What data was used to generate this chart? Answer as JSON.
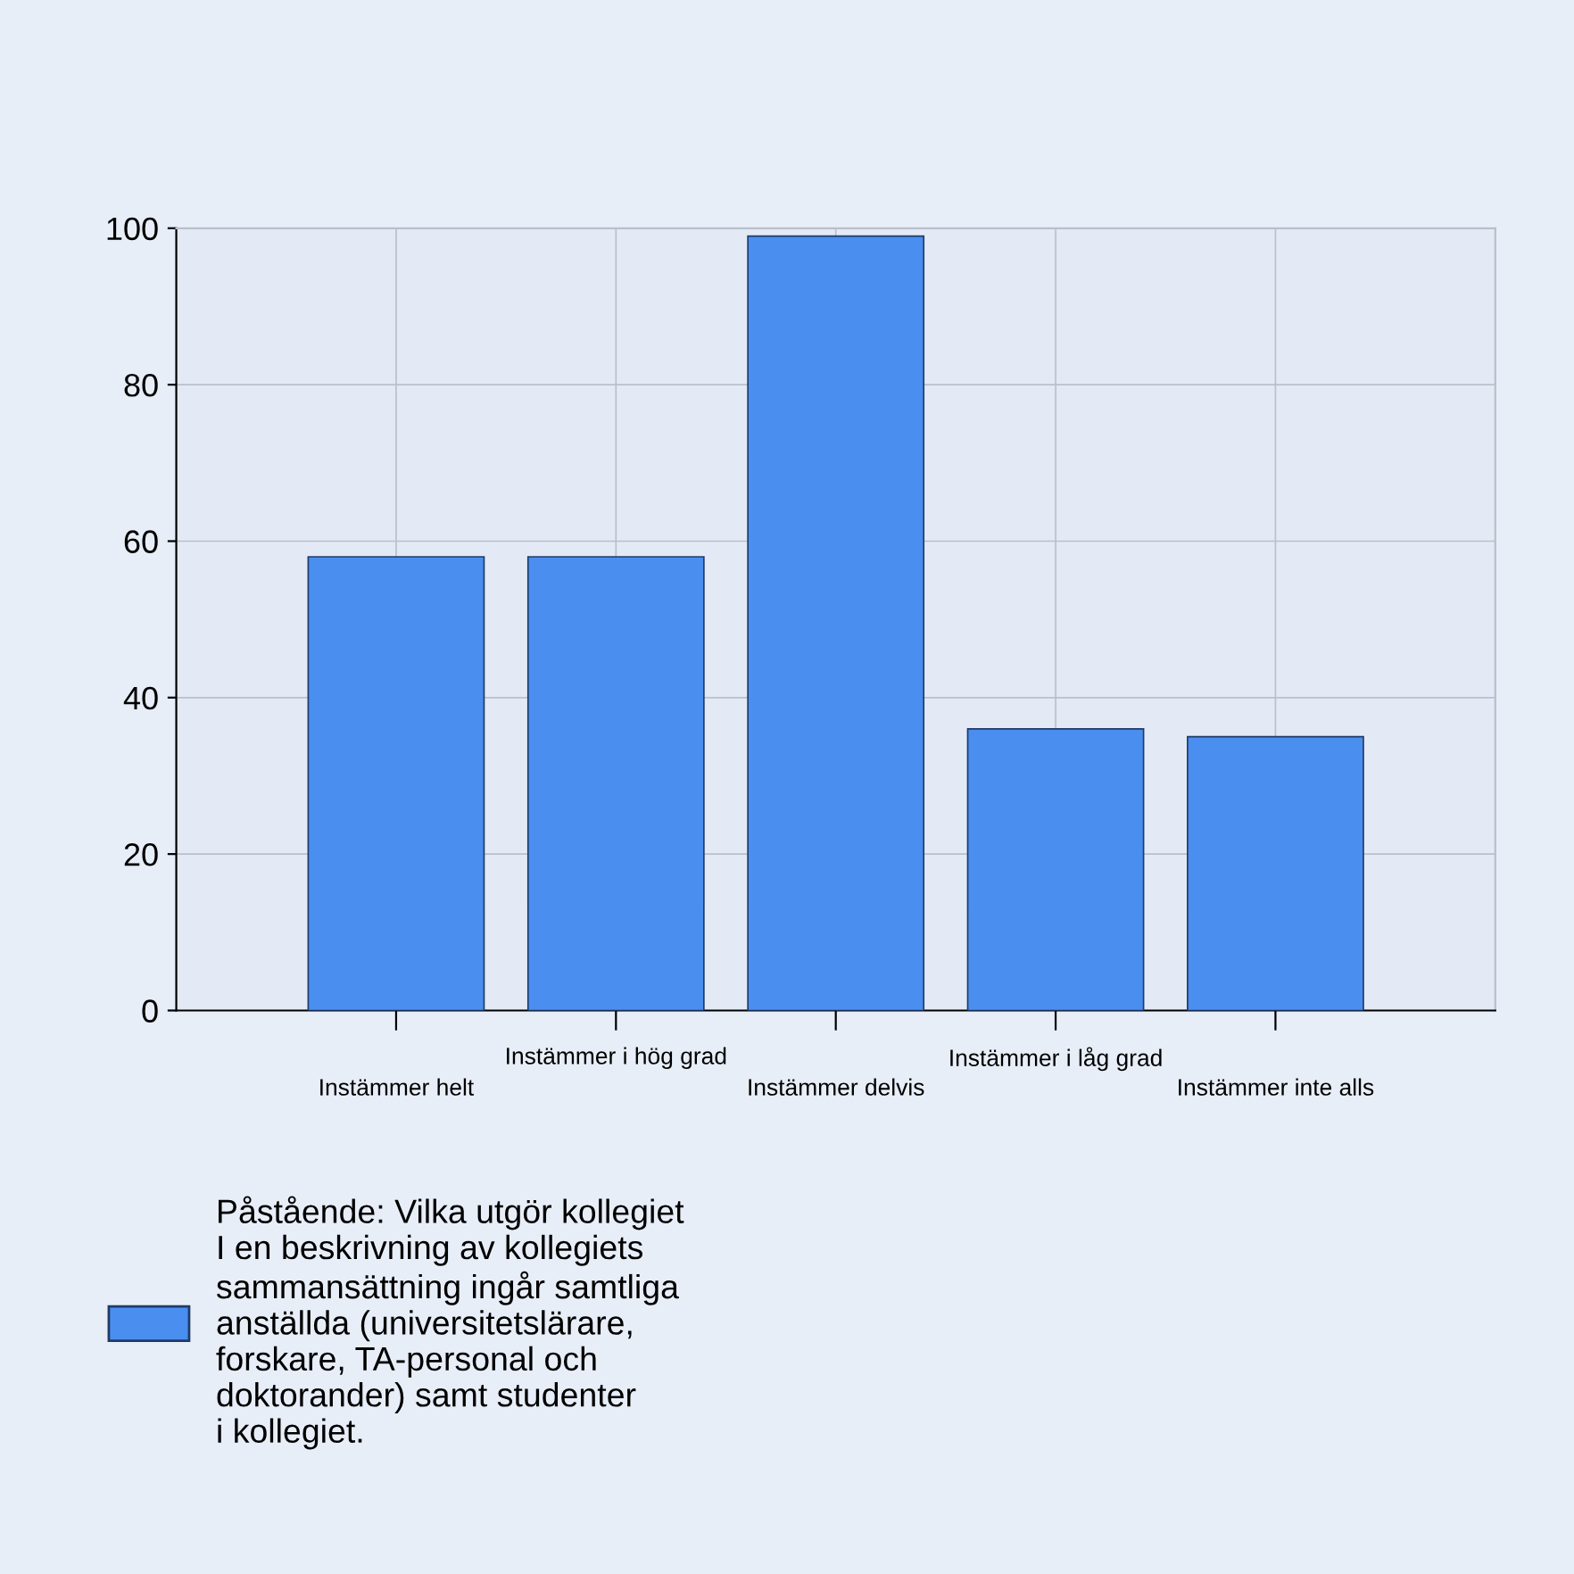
{
  "chart_data": {
    "type": "bar",
    "categories": [
      "Instämmer helt",
      "Instämmer i hög grad",
      "Instämmer delvis",
      "Instämmer i låg grad",
      "Instämmer inte alls"
    ],
    "series": [
      {
        "name": "Påstående: Vilka utgör kollegiet\nI en beskrivning av kollegiets\nsammansättning ingår samtliga\nanställda (universitetslärare,\nforskare, TA-personal och\ndoktorander) samt studenter\ni kollegiet.",
        "color": "#4a8ef0",
        "values": [
          58,
          58,
          99,
          36,
          35
        ]
      }
    ],
    "ylim": [
      0,
      100
    ],
    "yticks": [
      0,
      20,
      40,
      60,
      80,
      100
    ],
    "grid": true,
    "legend": "bottom left"
  }
}
